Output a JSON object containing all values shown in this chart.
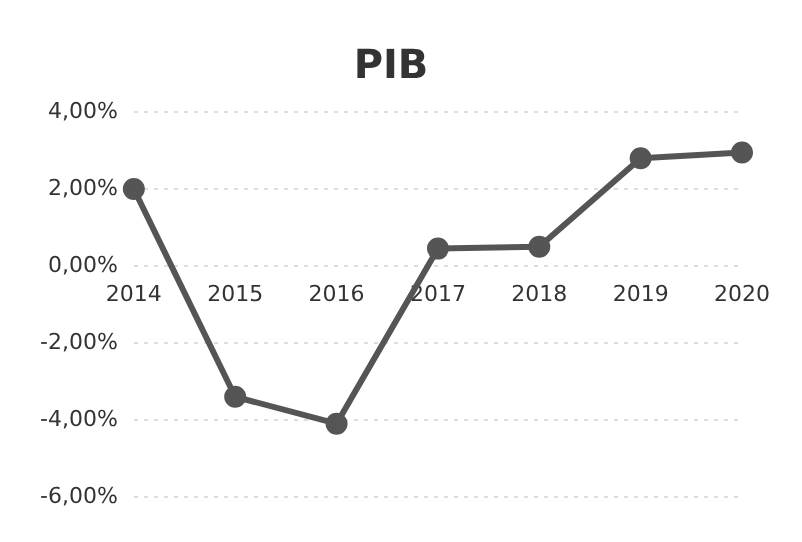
{
  "chart_data": {
    "type": "line",
    "title": "PIB",
    "categories": [
      "2014",
      "2015",
      "2016",
      "2017",
      "2018",
      "2019",
      "2020"
    ],
    "series": [
      {
        "color": "#555555",
        "values": [
          2.0,
          -3.4,
          -4.1,
          0.45,
          0.5,
          2.8,
          2.95
        ]
      }
    ],
    "ylim": [
      -6,
      4
    ],
    "yticks": [
      {
        "value": -6,
        "label": "-6,00%"
      },
      {
        "value": -4,
        "label": "-4,00%"
      },
      {
        "value": -2,
        "label": "-2,00%"
      },
      {
        "value": 0,
        "label": "0,00%"
      },
      {
        "value": 2,
        "label": "2,00%"
      },
      {
        "value": 4,
        "label": "4,00%"
      }
    ],
    "grid": "y",
    "legend": false,
    "marker": "circle",
    "line_style": "solid"
  }
}
